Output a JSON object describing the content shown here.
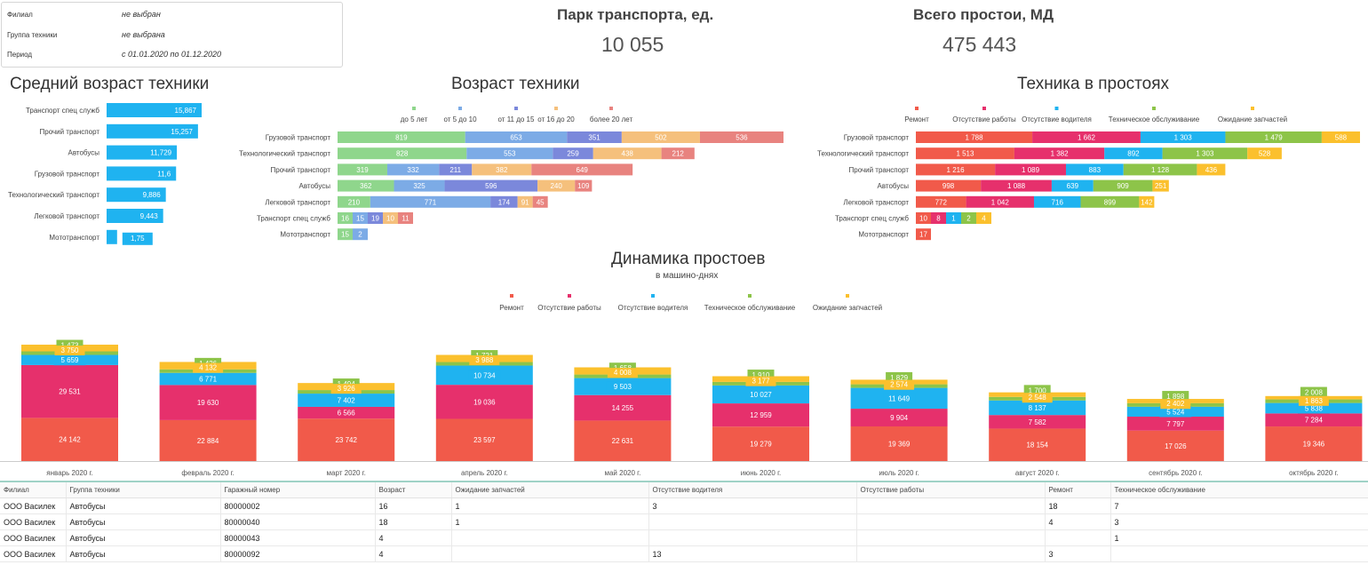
{
  "filters": [
    {
      "label": "Филиал",
      "value": "не выбран"
    },
    {
      "label": "Группа техники",
      "value": "не выбрана"
    },
    {
      "label": "Период",
      "value": "с 01.01.2020 по 01.12.2020"
    }
  ],
  "kpi": {
    "park_title": "Парк транспорта, ед.",
    "park_value": "10 055",
    "downtime_title": "Всего простои, МД",
    "downtime_value": "475 443"
  },
  "colors": {
    "bar_blue": "#1fb3f0",
    "age": [
      "#8fd68c",
      "#7cabe6",
      "#7b88db",
      "#f5c07c",
      "#e8837f"
    ],
    "status": [
      "#f15a4a",
      "#e6306c",
      "#1fb3f0",
      "#8dc449",
      "#fbc02d"
    ]
  },
  "chart_data": [
    {
      "type": "bar",
      "orientation": "horizontal",
      "title": "Средний возраст техники",
      "categories": [
        "Транспорт спец служб",
        "Прочий транспорт",
        "Автобусы",
        "Грузовой транспорт",
        "Технологический транспорт",
        "Легковой транспорт",
        "Мототранспорт"
      ],
      "values": [
        15.867,
        15.257,
        11.729,
        11.6,
        9.886,
        9.443,
        1.75
      ],
      "labels": [
        "15,867",
        "15,257",
        "11,729",
        "11,6",
        "9,886",
        "9,443",
        "1,75"
      ]
    },
    {
      "type": "bar",
      "orientation": "horizontal",
      "stacked": true,
      "title": "Возраст техники",
      "legend_position": "top",
      "categories": [
        "Грузовой транспорт",
        "Технологический транспорт",
        "Прочий транспорт",
        "Автобусы",
        "Легковой транспорт",
        "Транспорт спец служб",
        "Мототранспорт"
      ],
      "series": [
        {
          "name": "до 5 лет",
          "values": [
            819,
            828,
            319,
            362,
            210,
            16,
            15
          ]
        },
        {
          "name": "от 5 до 10",
          "values": [
            653,
            553,
            332,
            325,
            771,
            15,
            2
          ]
        },
        {
          "name": "от 11 до 15",
          "values": [
            351,
            259,
            211,
            596,
            174,
            19,
            null
          ]
        },
        {
          "name": "от 16 до 20",
          "values": [
            502,
            438,
            382,
            240,
            91,
            10,
            null
          ]
        },
        {
          "name": "более 20 лет",
          "values": [
            536,
            212,
            649,
            109,
            45,
            11,
            null
          ]
        }
      ]
    },
    {
      "type": "bar",
      "orientation": "horizontal",
      "stacked": true,
      "title": "Техника в простоях",
      "legend_position": "top",
      "categories": [
        "Грузовой транспорт",
        "Технологический транспорт",
        "Прочий транспорт",
        "Автобусы",
        "Легковой транспорт",
        "Транспорт спец служб",
        "Мототранспорт"
      ],
      "series": [
        {
          "name": "Ремонт",
          "values": [
            1788,
            1513,
            1216,
            998,
            772,
            10,
            17
          ]
        },
        {
          "name": "Отсутствие работы",
          "values": [
            1662,
            1382,
            1089,
            1088,
            1042,
            8,
            null
          ]
        },
        {
          "name": "Отсутствие водителя",
          "values": [
            1303,
            892,
            883,
            639,
            716,
            1,
            null
          ]
        },
        {
          "name": "Техническое обслуживание",
          "values": [
            1479,
            1303,
            1128,
            909,
            899,
            2,
            null
          ]
        },
        {
          "name": "Ожидание запчастей",
          "values": [
            588,
            528,
            436,
            251,
            142,
            4,
            null
          ]
        }
      ],
      "labels": [
        [
          "1 788",
          "1 662",
          "1 303",
          "1 479",
          "588"
        ],
        [
          "1 513",
          "1 382",
          "892",
          "1 303",
          "528"
        ],
        [
          "1 216",
          "1 089",
          "883",
          "1 128",
          "436"
        ],
        [
          "998",
          "1 088",
          "639",
          "909",
          "251"
        ],
        [
          "772",
          "1 042",
          "716",
          "899",
          "142"
        ],
        [
          "10",
          "8",
          "1",
          "2",
          "4"
        ],
        [
          "17",
          "",
          "",
          "",
          ""
        ]
      ]
    },
    {
      "type": "bar",
      "orientation": "vertical",
      "stacked": true,
      "title": "Динамика простоев",
      "subtitle": "в машино-днях",
      "legend_position": "top",
      "categories": [
        "январь 2020 г.",
        "февраль 2020 г.",
        "март 2020 г.",
        "апрель 2020 г.",
        "май 2020 г.",
        "июнь 2020 г.",
        "июль 2020 г.",
        "август 2020 г.",
        "сентябрь 2020 г.",
        "октябрь 2020 г."
      ],
      "series": [
        {
          "name": "Ремонт",
          "values": [
            24142,
            22884,
            23742,
            23597,
            22631,
            19279,
            19369,
            18154,
            17026,
            19346
          ]
        },
        {
          "name": "Отсутствие работы",
          "values": [
            29531,
            19630,
            6566,
            19036,
            14255,
            12959,
            9904,
            7582,
            7797,
            7284
          ]
        },
        {
          "name": "Отсутствие водителя",
          "values": [
            5659,
            6771,
            7402,
            10734,
            9503,
            10027,
            11649,
            8137,
            5524,
            5838
          ]
        },
        {
          "name": "Техническое обслуживание",
          "values": [
            1473,
            1426,
            1494,
            1721,
            1658,
            1910,
            1829,
            1700,
            1898,
            2008
          ]
        },
        {
          "name": "Ожидание запчастей",
          "values": [
            3750,
            4132,
            3926,
            3988,
            4008,
            3177,
            2574,
            2548,
            2402,
            1863
          ]
        }
      ],
      "labels": [
        [
          "24 142",
          "29 531",
          "5 659",
          "1 473",
          "3 750"
        ],
        [
          "22 884",
          "19 630",
          "6 771",
          "1 426",
          "4 132"
        ],
        [
          "23 742",
          "6 566",
          "7 402",
          "1 494",
          "3 926"
        ],
        [
          "23 597",
          "19 036",
          "10 734",
          "1 721",
          "3 988"
        ],
        [
          "22 631",
          "14 255",
          "9 503",
          "1 658",
          "4 008"
        ],
        [
          "19 279",
          "12 959",
          "10 027",
          "1 910",
          "3 177"
        ],
        [
          "19 369",
          "9 904",
          "11 649",
          "1 829",
          "2 574"
        ],
        [
          "18 154",
          "7 582",
          "8 137",
          "1 700",
          "2 548"
        ],
        [
          "17 026",
          "7 797",
          "5 524",
          "1 898",
          "2 402"
        ],
        [
          "19 346",
          "7 284",
          "5 838",
          "2 008",
          "1 863"
        ]
      ]
    }
  ],
  "table": {
    "columns": [
      "Филиал",
      "Группа техники",
      "Гаражный номер",
      "Возраст",
      "Ожидание запчастей",
      "Отсутствие водителя",
      "Отсутствие работы",
      "Ремонт",
      "Техническое обслуживание"
    ],
    "rows": [
      [
        "ООО Василек",
        "Автобусы",
        "80000002",
        "16",
        "1",
        "3",
        "",
        "18",
        "7"
      ],
      [
        "ООО Василек",
        "Автобусы",
        "80000040",
        "18",
        "1",
        "",
        "",
        "4",
        "3"
      ],
      [
        "ООО Василек",
        "Автобусы",
        "80000043",
        "4",
        "",
        "",
        "",
        "",
        "1"
      ],
      [
        "ООО Василек",
        "Автобусы",
        "80000092",
        "4",
        "",
        "13",
        "",
        "3",
        ""
      ]
    ]
  }
}
